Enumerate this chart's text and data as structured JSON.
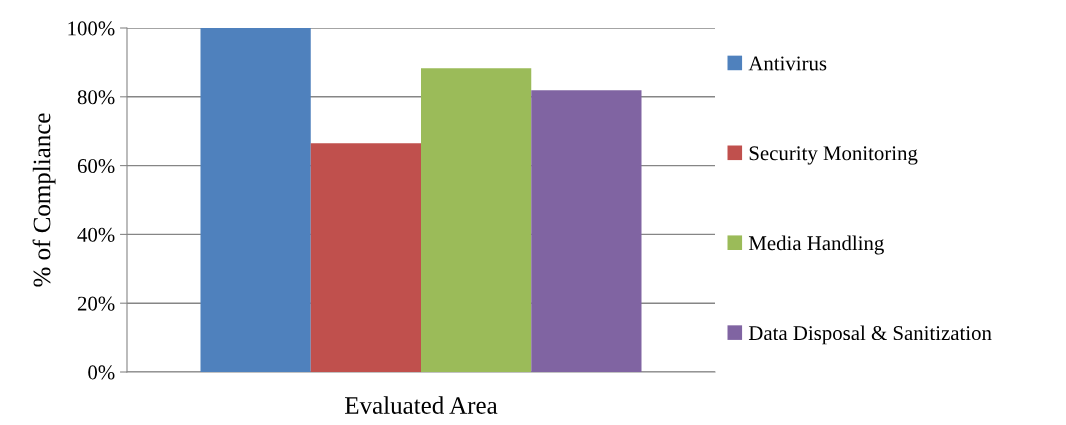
{
  "chart_data": {
    "type": "bar",
    "categories": [
      null
    ],
    "xlabel": "Evaluated Area",
    "ylabel": "% of Compliance",
    "series": [
      {
        "name": "Antivirus",
        "color": "#4f81bd",
        "values": [
          100
        ]
      },
      {
        "name": "Security Monitoring",
        "color": "#c0504d",
        "values": [
          66.5
        ]
      },
      {
        "name": "Media Handling",
        "color": "#9bbb59",
        "values": [
          88.3
        ]
      },
      {
        "name": "Data Disposal & Sanitization",
        "color": "#8064a2",
        "values": [
          81.9
        ]
      }
    ],
    "ylim": [
      0,
      100
    ],
    "yticks": [
      {
        "value": 0,
        "label": "0%"
      },
      {
        "value": 20,
        "label": "20%"
      },
      {
        "value": 40,
        "label": "40%"
      },
      {
        "value": 60,
        "label": "60%"
      },
      {
        "value": 80,
        "label": "80%"
      },
      {
        "value": 100,
        "label": "100%"
      }
    ],
    "grid": "y",
    "legend": "right"
  }
}
